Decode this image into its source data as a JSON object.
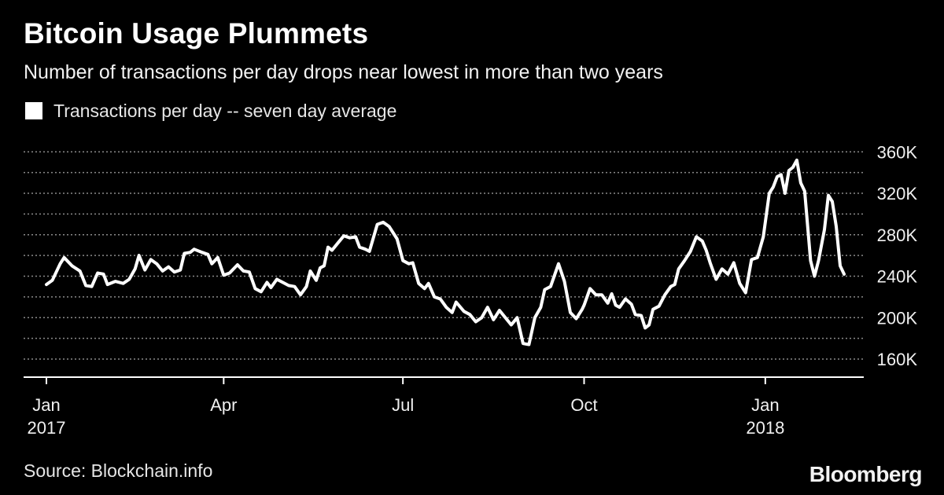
{
  "title": "Bitcoin Usage Plummets",
  "subtitle": "Number of transactions per day drops near lowest in more than two years",
  "source": "Source: Blockchain.info",
  "brand": "Bloomberg",
  "colors": {
    "background": "#000000",
    "line": "#ffffff",
    "grid": "#8a8a8a",
    "text": "#ffffff"
  },
  "chart_data": {
    "type": "line",
    "title": "Bitcoin Usage Plummets",
    "subtitle": "Number of transactions per day drops near lowest in more than two years",
    "legend": "top-left",
    "grid": true,
    "ylim": [
      145000,
      365000
    ],
    "y_ticks": [
      {
        "value": 360000,
        "label": "360K"
      },
      {
        "value": 320000,
        "label": "320K"
      },
      {
        "value": 280000,
        "label": "280K"
      },
      {
        "value": 240000,
        "label": "240K"
      },
      {
        "value": 200000,
        "label": "200K"
      },
      {
        "value": 160000,
        "label": "160K"
      }
    ],
    "x_range": [
      "2017-01-01",
      "2018-02-10"
    ],
    "x_ticks": [
      {
        "date": "2017-01-01",
        "label": "Jan",
        "sublabel": "2017"
      },
      {
        "date": "2017-04-01",
        "label": "Apr",
        "sublabel": ""
      },
      {
        "date": "2017-07-01",
        "label": "Jul",
        "sublabel": ""
      },
      {
        "date": "2017-10-01",
        "label": "Oct",
        "sublabel": ""
      },
      {
        "date": "2018-01-01",
        "label": "Jan",
        "sublabel": "2018"
      }
    ],
    "series": [
      {
        "name": "Transactions per day -- seven day average",
        "points": [
          [
            "2017-01-01",
            232000
          ],
          [
            "2017-01-04",
            236000
          ],
          [
            "2017-01-08",
            252000
          ],
          [
            "2017-01-10",
            258000
          ],
          [
            "2017-01-14",
            250000
          ],
          [
            "2017-01-18",
            245000
          ],
          [
            "2017-01-21",
            231000
          ],
          [
            "2017-01-24",
            230000
          ],
          [
            "2017-01-27",
            243000
          ],
          [
            "2017-01-30",
            242000
          ],
          [
            "2017-02-01",
            232000
          ],
          [
            "2017-02-05",
            235000
          ],
          [
            "2017-02-09",
            233000
          ],
          [
            "2017-02-12",
            237000
          ],
          [
            "2017-02-15",
            247000
          ],
          [
            "2017-02-17",
            260000
          ],
          [
            "2017-02-20",
            246000
          ],
          [
            "2017-02-23",
            256000
          ],
          [
            "2017-02-26",
            252000
          ],
          [
            "2017-03-01",
            245000
          ],
          [
            "2017-03-04",
            249000
          ],
          [
            "2017-03-07",
            244000
          ],
          [
            "2017-03-10",
            246000
          ],
          [
            "2017-03-12",
            262000
          ],
          [
            "2017-03-15",
            263000
          ],
          [
            "2017-03-17",
            266000
          ],
          [
            "2017-03-21",
            263000
          ],
          [
            "2017-03-24",
            261000
          ],
          [
            "2017-03-26",
            252000
          ],
          [
            "2017-03-29",
            258000
          ],
          [
            "2017-04-01",
            241000
          ],
          [
            "2017-04-04",
            243000
          ],
          [
            "2017-04-08",
            251000
          ],
          [
            "2017-04-11",
            245000
          ],
          [
            "2017-04-14",
            244000
          ],
          [
            "2017-04-17",
            228000
          ],
          [
            "2017-04-20",
            225000
          ],
          [
            "2017-04-23",
            234000
          ],
          [
            "2017-04-25",
            229000
          ],
          [
            "2017-04-28",
            237000
          ],
          [
            "2017-05-01",
            234000
          ],
          [
            "2017-05-04",
            231000
          ],
          [
            "2017-05-07",
            230000
          ],
          [
            "2017-05-10",
            222000
          ],
          [
            "2017-05-13",
            230000
          ],
          [
            "2017-05-15",
            245000
          ],
          [
            "2017-05-18",
            236000
          ],
          [
            "2017-05-20",
            248000
          ],
          [
            "2017-05-22",
            250000
          ],
          [
            "2017-05-24",
            268000
          ],
          [
            "2017-05-26",
            265000
          ],
          [
            "2017-05-29",
            272000
          ],
          [
            "2017-06-01",
            279000
          ],
          [
            "2017-06-04",
            277000
          ],
          [
            "2017-06-07",
            278000
          ],
          [
            "2017-06-09",
            268000
          ],
          [
            "2017-06-12",
            266000
          ],
          [
            "2017-06-14",
            264000
          ],
          [
            "2017-06-18",
            290000
          ],
          [
            "2017-06-21",
            292000
          ],
          [
            "2017-06-24",
            288000
          ],
          [
            "2017-06-28",
            276000
          ],
          [
            "2017-07-01",
            255000
          ],
          [
            "2017-07-04",
            252000
          ],
          [
            "2017-07-06",
            253000
          ],
          [
            "2017-07-09",
            233000
          ],
          [
            "2017-07-12",
            228000
          ],
          [
            "2017-07-14",
            233000
          ],
          [
            "2017-07-17",
            220000
          ],
          [
            "2017-07-20",
            218000
          ],
          [
            "2017-07-23",
            210000
          ],
          [
            "2017-07-26",
            205000
          ],
          [
            "2017-07-28",
            215000
          ],
          [
            "2017-08-01",
            206000
          ],
          [
            "2017-08-04",
            203000
          ],
          [
            "2017-08-07",
            196000
          ],
          [
            "2017-08-10",
            200000
          ],
          [
            "2017-08-13",
            210000
          ],
          [
            "2017-08-16",
            198000
          ],
          [
            "2017-08-19",
            207000
          ],
          [
            "2017-08-22",
            200000
          ],
          [
            "2017-08-25",
            193000
          ],
          [
            "2017-08-28",
            200000
          ],
          [
            "2017-08-31",
            175000
          ],
          [
            "2017-09-03",
            174000
          ],
          [
            "2017-09-06",
            200000
          ],
          [
            "2017-09-09",
            210000
          ],
          [
            "2017-09-11",
            227000
          ],
          [
            "2017-09-14",
            230000
          ],
          [
            "2017-09-18",
            252000
          ],
          [
            "2017-09-21",
            235000
          ],
          [
            "2017-09-24",
            205000
          ],
          [
            "2017-09-27",
            199000
          ],
          [
            "2017-09-30",
            208000
          ],
          [
            "2017-10-01",
            212000
          ],
          [
            "2017-10-04",
            228000
          ],
          [
            "2017-10-07",
            222000
          ],
          [
            "2017-10-10",
            222000
          ],
          [
            "2017-10-13",
            214000
          ],
          [
            "2017-10-15",
            223000
          ],
          [
            "2017-10-17",
            212000
          ],
          [
            "2017-10-19",
            210000
          ],
          [
            "2017-10-22",
            218000
          ],
          [
            "2017-10-25",
            213000
          ],
          [
            "2017-10-27",
            203000
          ],
          [
            "2017-10-30",
            202000
          ],
          [
            "2017-11-01",
            190000
          ],
          [
            "2017-11-03",
            193000
          ],
          [
            "2017-11-05",
            208000
          ],
          [
            "2017-11-08",
            211000
          ],
          [
            "2017-11-11",
            222000
          ],
          [
            "2017-11-14",
            230000
          ],
          [
            "2017-11-16",
            232000
          ],
          [
            "2017-11-18",
            247000
          ],
          [
            "2017-11-21",
            255000
          ],
          [
            "2017-11-24",
            264000
          ],
          [
            "2017-11-27",
            278000
          ],
          [
            "2017-11-30",
            274000
          ],
          [
            "2017-12-02",
            265000
          ],
          [
            "2017-12-04",
            253000
          ],
          [
            "2017-12-07",
            237000
          ],
          [
            "2017-12-10",
            247000
          ],
          [
            "2017-12-13",
            242000
          ],
          [
            "2017-12-16",
            253000
          ],
          [
            "2017-12-19",
            233000
          ],
          [
            "2017-12-22",
            224000
          ],
          [
            "2017-12-25",
            256000
          ],
          [
            "2017-12-28",
            258000
          ],
          [
            "2017-12-31",
            278000
          ],
          [
            "2018-01-03",
            320000
          ],
          [
            "2018-01-05",
            326000
          ],
          [
            "2018-01-07",
            336000
          ],
          [
            "2018-01-09",
            338000
          ],
          [
            "2018-01-11",
            320000
          ],
          [
            "2018-01-13",
            342000
          ],
          [
            "2018-01-15",
            345000
          ],
          [
            "2018-01-17",
            352000
          ],
          [
            "2018-01-19",
            330000
          ],
          [
            "2018-01-21",
            322000
          ],
          [
            "2018-01-24",
            255000
          ],
          [
            "2018-01-26",
            240000
          ],
          [
            "2018-01-28",
            255000
          ],
          [
            "2018-01-31",
            285000
          ],
          [
            "2018-02-02",
            318000
          ],
          [
            "2018-02-04",
            312000
          ],
          [
            "2018-02-06",
            288000
          ],
          [
            "2018-02-08",
            250000
          ],
          [
            "2018-02-10",
            242000
          ]
        ]
      }
    ]
  }
}
